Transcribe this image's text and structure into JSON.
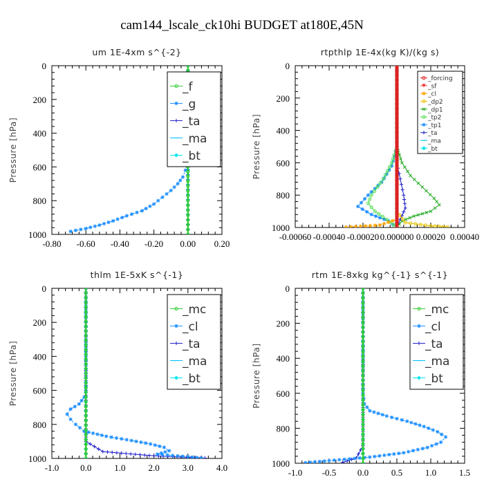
{
  "figure_title": "cam144_lscale_ck10hi  BUDGET at180E,45N",
  "chart_data": [
    {
      "type": "line",
      "title": "um  1E-4xm s^{-2}",
      "ylabel": "Pressure [hPa]",
      "xlim": [
        -0.8,
        0.2
      ],
      "ylim": [
        1000,
        0
      ],
      "xticks": [
        -0.8,
        -0.6,
        -0.4,
        -0.2,
        0.0,
        0.2
      ],
      "xtick_labels": [
        "-0.80",
        "-0.60",
        "-0.40",
        "-0.20",
        "0.00",
        "0.20"
      ],
      "yticks": [
        0,
        200,
        400,
        600,
        800,
        1000
      ],
      "legend_position": "top-right",
      "legend_size": "large",
      "series": [
        {
          "name": "_f",
          "color": "#33cc33",
          "marker": "circle",
          "points": [
            [
              0.0,
              0
            ],
            [
              0.0,
              200
            ],
            [
              0.0,
              400
            ],
            [
              0.0,
              600
            ],
            [
              0.0,
              800
            ],
            [
              0.0,
              1000
            ]
          ]
        },
        {
          "name": "_g",
          "color": "#1e90ff",
          "marker": "star",
          "points": [
            [
              0,
              0
            ],
            [
              0,
              100
            ],
            [
              0,
              200
            ],
            [
              0,
              300
            ],
            [
              0,
              400
            ],
            [
              0,
              500
            ],
            [
              -0.005,
              580
            ],
            [
              -0.015,
              620
            ],
            [
              -0.03,
              660
            ],
            [
              -0.06,
              700
            ],
            [
              -0.1,
              740
            ],
            [
              -0.15,
              780
            ],
            [
              -0.2,
              820
            ],
            [
              -0.27,
              860
            ],
            [
              -0.36,
              890
            ],
            [
              -0.44,
              920
            ],
            [
              -0.52,
              945
            ],
            [
              -0.6,
              965
            ],
            [
              -0.69,
              982
            ]
          ]
        },
        {
          "name": "_ta",
          "color": "#2222cc",
          "marker": "plus",
          "points": [
            [
              0.0,
              0
            ],
            [
              0.0,
              500
            ],
            [
              0.0,
              1000
            ]
          ]
        },
        {
          "name": "_ma",
          "color": "#00bfff",
          "marker": "dash",
          "points": [
            [
              0.0,
              0
            ],
            [
              0.0,
              500
            ],
            [
              0.0,
              1000
            ]
          ]
        },
        {
          "name": "_bt",
          "color": "#00e5ee",
          "marker": "diamond",
          "points": [
            [
              0,
              0
            ],
            [
              0,
              500
            ],
            [
              0,
              1000
            ]
          ]
        }
      ]
    },
    {
      "type": "line",
      "title": "rtpthlp  1E-4x(kg K)/(kg s)",
      "ylabel": "Pressure [hPa]",
      "xlim": [
        -0.0006,
        0.0004
      ],
      "ylim": [
        1000,
        0
      ],
      "xticks": [
        -0.0006,
        -0.0004,
        -0.0002,
        0.0,
        0.0002,
        0.0004
      ],
      "xtick_labels": [
        "-0.00060",
        "-0.00040",
        "-0.00020",
        "0.000000",
        "0.00020",
        "0.00040"
      ],
      "yticks": [
        0,
        200,
        400,
        600,
        800,
        1000
      ],
      "legend_position": "top-right",
      "legend_size": "small",
      "series": [
        {
          "name": "_forcing",
          "color": "#dd2222",
          "marker": "circle",
          "points": [
            [
              0,
              0
            ],
            [
              0,
              500
            ],
            [
              0,
              1000
            ]
          ]
        },
        {
          "name": "_sf",
          "color": "#ee3333",
          "marker": "triangle",
          "points": [
            [
              0,
              0
            ],
            [
              0,
              500
            ],
            [
              0,
              1000
            ]
          ]
        },
        {
          "name": "_cl",
          "color": "#ffa500",
          "marker": "star",
          "points": [
            [
              0,
              0
            ],
            [
              0,
              800
            ],
            [
              0,
              950
            ],
            [
              -0.0001,
              985
            ],
            [
              -0.0003,
              998
            ]
          ]
        },
        {
          "name": "_dp2",
          "color": "#e6c200",
          "marker": "circle",
          "points": [
            [
              0,
              0
            ],
            [
              0,
              900
            ],
            [
              5e-05,
              970
            ],
            [
              0.0002,
              990
            ],
            [
              0.0003,
              997
            ]
          ]
        },
        {
          "name": "_dp1",
          "color": "#22aa22",
          "marker": "x",
          "points": [
            [
              0,
              0
            ],
            [
              0,
              500
            ],
            [
              3e-05,
              600
            ],
            [
              8e-05,
              680
            ],
            [
              0.00015,
              750
            ],
            [
              0.00022,
              820
            ],
            [
              0.00025,
              860
            ],
            [
              0.0002,
              900
            ],
            [
              0.0001,
              930
            ],
            [
              3e-05,
              960
            ],
            [
              0,
              1000
            ]
          ]
        },
        {
          "name": "_tp2",
          "color": "#55dd55",
          "marker": "circle",
          "points": [
            [
              0,
              0
            ],
            [
              0,
              500
            ],
            [
              -3e-05,
              600
            ],
            [
              -8e-05,
              700
            ],
            [
              -0.00015,
              800
            ],
            [
              -0.00017,
              850
            ],
            [
              -0.00013,
              900
            ],
            [
              -6e-05,
              950
            ],
            [
              0,
              1000
            ]
          ]
        },
        {
          "name": "_tp1",
          "color": "#1e90ff",
          "marker": "star",
          "points": [
            [
              0,
              0
            ],
            [
              0,
              500
            ],
            [
              -3e-05,
              620
            ],
            [
              -9e-05,
              720
            ],
            [
              -0.00017,
              800
            ],
            [
              -0.00023,
              870
            ],
            [
              -0.00015,
              920
            ],
            [
              -5e-05,
              960
            ],
            [
              0,
              1000
            ]
          ]
        },
        {
          "name": "_ta",
          "color": "#2222cc",
          "marker": "plus",
          "points": [
            [
              0,
              0
            ],
            [
              0,
              600
            ],
            [
              2e-05,
              700
            ],
            [
              4e-05,
              800
            ],
            [
              5e-05,
              880
            ],
            [
              2e-05,
              950
            ],
            [
              0,
              1000
            ]
          ]
        },
        {
          "name": "_ma",
          "color": "#00bfff",
          "marker": "dash",
          "points": [
            [
              0,
              0
            ],
            [
              0,
              500
            ],
            [
              0,
              1000
            ]
          ]
        },
        {
          "name": "_bt",
          "color": "#00e5ee",
          "marker": "diamond",
          "points": [
            [
              0,
              0
            ],
            [
              0,
              500
            ],
            [
              0,
              1000
            ]
          ]
        }
      ]
    },
    {
      "type": "line",
      "title": "thlm  1E-5xK s^{-1}",
      "ylabel": "Pressure [hPa]",
      "xlim": [
        -1.0,
        4.0
      ],
      "ylim": [
        1000,
        0
      ],
      "xticks": [
        -1.0,
        0.0,
        1.0,
        2.0,
        3.0,
        4.0
      ],
      "xtick_labels": [
        "-1.0",
        "0.0",
        "1.0",
        "2.0",
        "3.0",
        "4.0"
      ],
      "yticks": [
        0,
        200,
        400,
        600,
        800,
        1000
      ],
      "legend_position": "top-right",
      "legend_size": "large",
      "series": [
        {
          "name": "_mc",
          "color": "#33cc33",
          "marker": "circle",
          "points": [
            [
              0,
              0
            ],
            [
              0,
              500
            ],
            [
              0,
              1000
            ]
          ]
        },
        {
          "name": "_cl",
          "color": "#1e90ff",
          "marker": "star",
          "points": [
            [
              0,
              0
            ],
            [
              0,
              100
            ],
            [
              0,
              200
            ],
            [
              0,
              300
            ],
            [
              0,
              400
            ],
            [
              0,
              500
            ],
            [
              0,
              600
            ],
            [
              -0.05,
              640
            ],
            [
              -0.2,
              680
            ],
            [
              -0.45,
              710
            ],
            [
              -0.55,
              740
            ],
            [
              -0.45,
              770
            ],
            [
              -0.3,
              800
            ],
            [
              -0.05,
              840
            ],
            [
              0.6,
              870
            ],
            [
              1.2,
              890
            ],
            [
              1.9,
              915
            ],
            [
              2.3,
              935
            ],
            [
              2.45,
              955
            ],
            [
              2.1,
              975
            ],
            [
              3.0,
              990
            ],
            [
              3.4,
              998
            ]
          ]
        },
        {
          "name": "_ta",
          "color": "#2222cc",
          "marker": "plus",
          "points": [
            [
              0,
              0
            ],
            [
              0,
              800
            ],
            [
              0,
              900
            ],
            [
              0.5,
              960
            ],
            [
              2.0,
              985
            ],
            [
              3.5,
              998
            ]
          ]
        },
        {
          "name": "_ma",
          "color": "#00bfff",
          "marker": "dash",
          "points": [
            [
              0,
              0
            ],
            [
              0,
              500
            ],
            [
              0,
              1000
            ]
          ]
        },
        {
          "name": "_bt",
          "color": "#00e5ee",
          "marker": "diamond",
          "points": [
            [
              0,
              0
            ],
            [
              0,
              500
            ],
            [
              0,
              1000
            ]
          ]
        }
      ]
    },
    {
      "type": "line",
      "title": "rtm  1E-8xkg kg^{-1} s^{-1}",
      "ylabel": "Pressure [hPa]",
      "xlim": [
        -1.0,
        1.5
      ],
      "ylim": [
        1000,
        0
      ],
      "xticks": [
        -1.0,
        -0.5,
        0.0,
        0.5,
        1.0,
        1.5
      ],
      "xtick_labels": [
        "-1.0",
        "-0.5",
        "0.0",
        "0.5",
        "1.0",
        "1.5"
      ],
      "yticks": [
        0,
        200,
        400,
        600,
        800,
        1000
      ],
      "legend_position": "top-right",
      "legend_size": "large",
      "series": [
        {
          "name": "_mc",
          "color": "#33cc33",
          "marker": "circle",
          "points": [
            [
              0,
              0
            ],
            [
              0,
              500
            ],
            [
              0,
              1000
            ]
          ]
        },
        {
          "name": "_cl",
          "color": "#1e90ff",
          "marker": "star",
          "points": [
            [
              0,
              0
            ],
            [
              0,
              100
            ],
            [
              0,
              200
            ],
            [
              0,
              300
            ],
            [
              0,
              400
            ],
            [
              0,
              500
            ],
            [
              0,
              600
            ],
            [
              0.02,
              660
            ],
            [
              0.1,
              700
            ],
            [
              0.35,
              730
            ],
            [
              0.65,
              760
            ],
            [
              0.9,
              790
            ],
            [
              1.1,
              820
            ],
            [
              1.22,
              850
            ],
            [
              1.15,
              880
            ],
            [
              0.95,
              910
            ],
            [
              0.6,
              940
            ],
            [
              0.1,
              965
            ],
            [
              -0.5,
              985
            ],
            [
              -0.85,
              997
            ]
          ]
        },
        {
          "name": "_ta",
          "color": "#2222cc",
          "marker": "plus",
          "points": [
            [
              0,
              0
            ],
            [
              0,
              900
            ],
            [
              -0.1,
              970
            ],
            [
              -0.3,
              995
            ]
          ]
        },
        {
          "name": "_ma",
          "color": "#00bfff",
          "marker": "dash",
          "points": [
            [
              0,
              0
            ],
            [
              0,
              500
            ],
            [
              0,
              1000
            ]
          ]
        },
        {
          "name": "_bt",
          "color": "#00e5ee",
          "marker": "diamond",
          "points": [
            [
              0,
              0
            ],
            [
              0,
              500
            ],
            [
              0,
              1000
            ]
          ]
        }
      ]
    }
  ]
}
